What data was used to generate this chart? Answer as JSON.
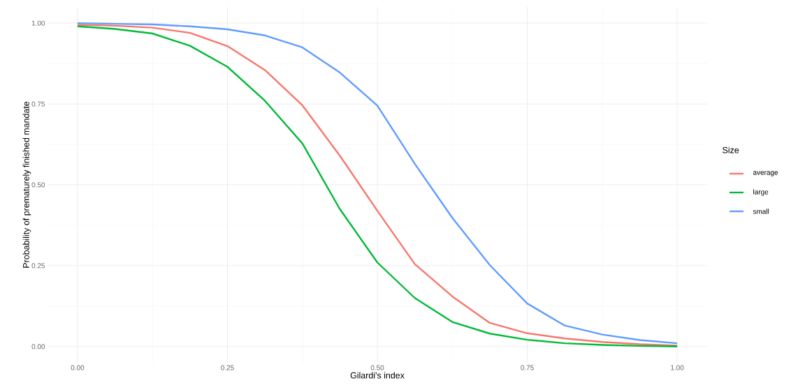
{
  "chart_data": {
    "type": "line",
    "xlabel": "Gilardi's index",
    "ylabel": "Probability of prematurely finished mandate",
    "legend_title": "Size",
    "x": [
      0,
      0.0625,
      0.125,
      0.1875,
      0.25,
      0.3125,
      0.375,
      0.4375,
      0.5,
      0.5625,
      0.625,
      0.6875,
      0.75,
      0.8125,
      0.875,
      0.9375,
      1.0
    ],
    "series": [
      {
        "name": "average",
        "color": "#f8766d",
        "values": [
          0.995,
          0.992,
          0.986,
          0.97,
          0.929,
          0.855,
          0.746,
          0.59,
          0.42,
          0.255,
          0.155,
          0.073,
          0.041,
          0.025,
          0.014,
          0.007,
          0.003
        ]
      },
      {
        "name": "large",
        "color": "#00ba38",
        "values": [
          0.99,
          0.982,
          0.968,
          0.93,
          0.865,
          0.76,
          0.628,
          0.425,
          0.26,
          0.15,
          0.076,
          0.04,
          0.021,
          0.01,
          0.005,
          0.002,
          0.0
        ]
      },
      {
        "name": "small",
        "color": "#619cff",
        "values": [
          1.0,
          0.998,
          0.996,
          0.99,
          0.981,
          0.962,
          0.925,
          0.847,
          0.745,
          0.565,
          0.398,
          0.252,
          0.133,
          0.065,
          0.037,
          0.02,
          0.01
        ]
      }
    ],
    "xlim": [
      -0.05,
      1.05
    ],
    "ylim": [
      -0.05,
      1.05
    ],
    "xticks": [
      {
        "value": 0,
        "label": "0.00"
      },
      {
        "value": 0.25,
        "label": "0.25"
      },
      {
        "value": 0.5,
        "label": "0.50"
      },
      {
        "value": 0.75,
        "label": "0.75"
      },
      {
        "value": 1,
        "label": "1.00"
      }
    ],
    "yticks": [
      {
        "value": 0,
        "label": "0.00"
      },
      {
        "value": 0.25,
        "label": "0.25"
      },
      {
        "value": 0.5,
        "label": "0.50"
      },
      {
        "value": 0.75,
        "label": "0.75"
      },
      {
        "value": 1,
        "label": "1.00"
      }
    ],
    "grid": true,
    "legend": "right",
    "marker": "none",
    "line_style": "solid"
  }
}
